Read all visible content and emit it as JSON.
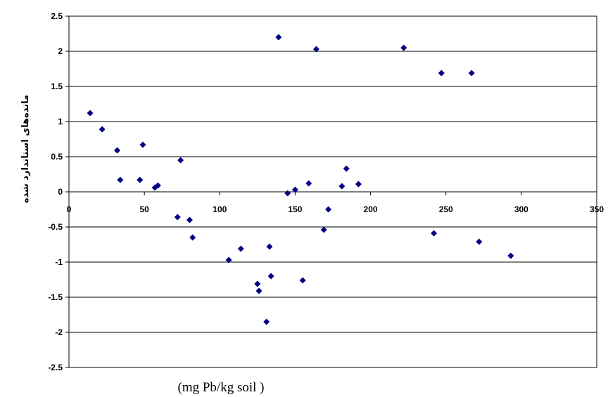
{
  "chart_data": {
    "type": "scatter",
    "title": "",
    "xlabel": "(mg Pb/kg soil )",
    "ylabel": "ماندەهای استاندارد شده",
    "xlim": [
      0,
      350
    ],
    "ylim": [
      -2.5,
      2.5
    ],
    "xticks": [
      "0",
      "50",
      "100",
      "150",
      "200",
      "250",
      "300",
      "350"
    ],
    "yticks": [
      "2.5",
      "2",
      "1.5",
      "1",
      "0.5",
      "0",
      "-0.5",
      "-1",
      "-1.5",
      "-2",
      "-2.5"
    ],
    "grid": "horizontal",
    "marker": "diamond",
    "color": "#000080",
    "series": [
      {
        "points": [
          [
            14,
            1.12
          ],
          [
            22,
            0.89
          ],
          [
            32,
            0.59
          ],
          [
            34,
            0.17
          ],
          [
            47,
            0.17
          ],
          [
            49,
            0.67
          ],
          [
            57,
            0.06
          ],
          [
            59,
            0.09
          ],
          [
            72,
            -0.36
          ],
          [
            74,
            0.45
          ],
          [
            80,
            -0.4
          ],
          [
            82,
            -0.65
          ],
          [
            106,
            -0.97
          ],
          [
            114,
            -0.81
          ],
          [
            125,
            -1.31
          ],
          [
            126,
            -1.41
          ],
          [
            131,
            -1.85
          ],
          [
            133,
            -0.78
          ],
          [
            134,
            -1.2
          ],
          [
            139,
            2.2
          ],
          [
            145,
            -0.02
          ],
          [
            150,
            0.03
          ],
          [
            155,
            -1.26
          ],
          [
            159,
            0.12
          ],
          [
            164,
            2.03
          ],
          [
            169,
            -0.54
          ],
          [
            172,
            -0.25
          ],
          [
            181,
            0.08
          ],
          [
            184,
            0.33
          ],
          [
            192,
            0.11
          ],
          [
            222,
            2.05
          ],
          [
            242,
            -0.59
          ],
          [
            247,
            1.69
          ],
          [
            267,
            1.69
          ],
          [
            272,
            -0.71
          ],
          [
            293,
            -0.91
          ]
        ]
      }
    ]
  }
}
